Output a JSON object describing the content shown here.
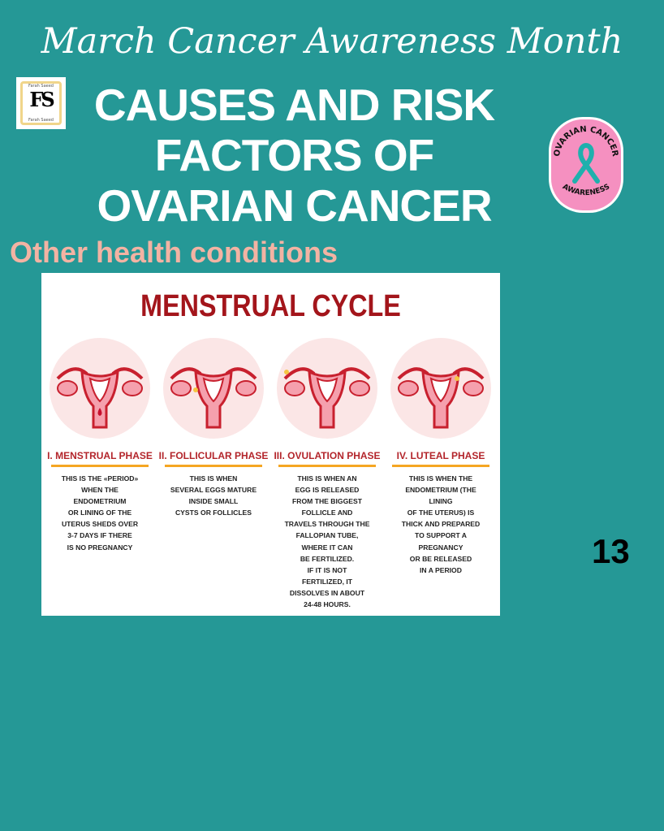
{
  "header": {
    "top_title": "March Cancer Awareness Month",
    "heading_lines": [
      "CAUSES AND RISK",
      "FACTORS OF",
      "OVARIAN CANCER"
    ],
    "subtitle": "Other health conditions"
  },
  "logo": {
    "initials": "FS",
    "name": "Farah Saeed"
  },
  "badge": {
    "top_text": "OVARIAN CANCER",
    "bottom_text": "AWARENESS",
    "icon": "awareness-ribbon-icon"
  },
  "infographic": {
    "title": "MENSTRUAL CYCLE",
    "phases": [
      {
        "title": "I. MENSTRUAL PHASE",
        "text": "THIS IS THE «PERIOD»\nWHEN THE\nENDOMETRIUM\nOR LINING OF THE\nUTERUS SHEDS OVER\n3-7 DAYS IF THERE\nIS NO PREGNANCY"
      },
      {
        "title": "II. FOLLICULAR PHASE",
        "text": "THIS IS WHEN\nSEVERAL EGGS MATURE\nINSIDE SMALL\nCYSTS OR FOLLICLES"
      },
      {
        "title": "III. OVULATION PHASE",
        "text": "THIS IS WHEN AN\nEGG IS RELEASED\nFROM THE BIGGEST\nFOLLICLE AND\nTRAVELS THROUGH THE\nFALLOPIAN TUBE,\nWHERE IT CAN\nBE FERTILIZED.\nIF IT IS NOT\nFERTILIZED, IT\nDISSOLVES IN ABOUT\n24-48 HOURS."
      },
      {
        "title": "IV. LUTEAL PHASE",
        "text": "THIS IS WHEN THE\nENDOMETRIUM (THE\nLINING\nOF THE UTERUS) IS\nTHICK AND PREPARED\nTO SUPPORT A\nPREGNANCY\nOR BE RELEASED\nIN A PERIOD"
      }
    ]
  },
  "page_number": "13",
  "colors": {
    "background": "#259896",
    "subtitle": "#f3b3a3",
    "cycle_title": "#a3151b",
    "accent_bar": "#f5a623",
    "badge_pink": "#f590c0",
    "ribbon": "#1fb0ad"
  }
}
